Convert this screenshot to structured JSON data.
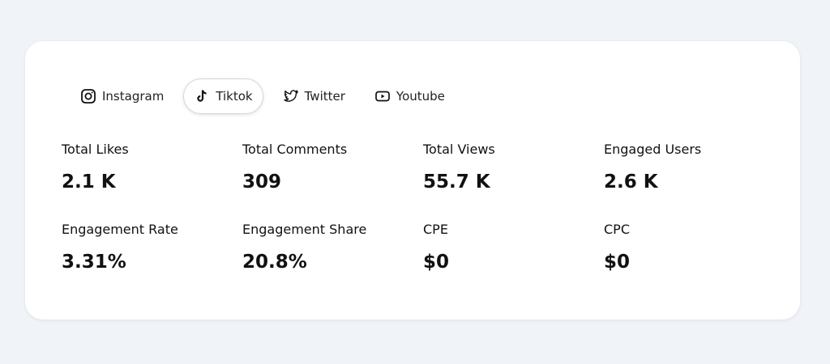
{
  "tabs": [
    "Instagram",
    "Tiktok",
    "Twitter",
    "Youtube"
  ],
  "active_tab": 1,
  "metrics": [
    {
      "label": "Total Likes",
      "value": "2.1 K"
    },
    {
      "label": "Total Comments",
      "value": "309"
    },
    {
      "label": "Total Views",
      "value": "55.7 K"
    },
    {
      "label": "Engaged Users",
      "value": "2.6 K"
    },
    {
      "label": "Engagement Rate",
      "value": "3.31%"
    },
    {
      "label": "Engagement Share",
      "value": "20.8%"
    },
    {
      "label": "CPE",
      "value": "$0"
    },
    {
      "label": "CPC",
      "value": "$0"
    }
  ]
}
